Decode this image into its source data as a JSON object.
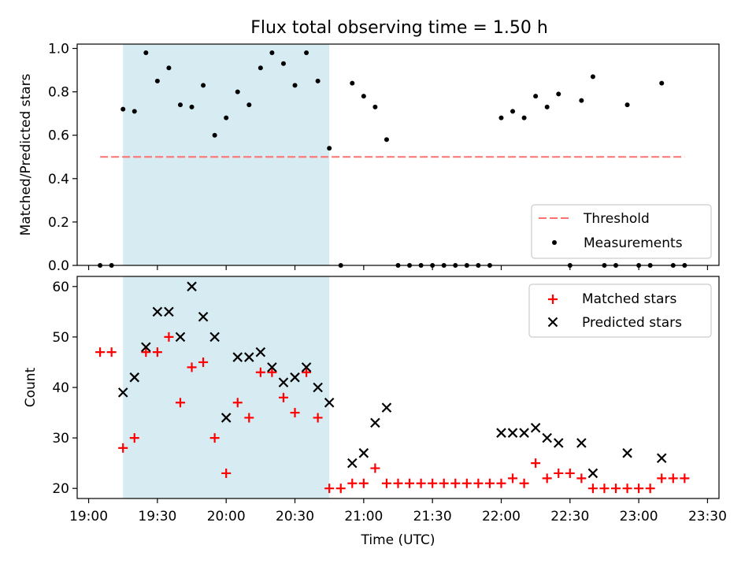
{
  "chart_data": [
    {
      "type": "scatter",
      "title": "Flux total observing time = 1.50 h",
      "ylabel": "Matched/Predicted stars",
      "xlabel": "",
      "xlim": [
        "19:00",
        "23:30"
      ],
      "ylim": [
        0,
        1.0
      ],
      "yticks": [
        "0.0",
        "0.2",
        "0.4",
        "0.6",
        "0.8",
        "1.0"
      ],
      "grid": false,
      "legend_placement": "lower-right",
      "shaded_interval": {
        "start": "19:15",
        "end": "20:45",
        "color": "#add8e6"
      },
      "series": [
        {
          "name": "Threshold",
          "kind": "dashed-line",
          "color": "#ff7070",
          "x": [
            "19:05",
            "23:20"
          ],
          "y": [
            0.5,
            0.5
          ]
        },
        {
          "name": "Measurements",
          "kind": "dot",
          "color": "#000000",
          "points": [
            [
              "19:05",
              0.0
            ],
            [
              "19:10",
              0.0
            ],
            [
              "19:15",
              0.72
            ],
            [
              "19:20",
              0.71
            ],
            [
              "19:25",
              0.98
            ],
            [
              "19:30",
              0.85
            ],
            [
              "19:35",
              0.91
            ],
            [
              "19:40",
              0.74
            ],
            [
              "19:45",
              0.73
            ],
            [
              "19:50",
              0.83
            ],
            [
              "19:55",
              0.6
            ],
            [
              "20:00",
              0.68
            ],
            [
              "20:05",
              0.8
            ],
            [
              "20:10",
              0.74
            ],
            [
              "20:15",
              0.91
            ],
            [
              "20:20",
              0.98
            ],
            [
              "20:25",
              0.93
            ],
            [
              "20:30",
              0.83
            ],
            [
              "20:35",
              0.98
            ],
            [
              "20:40",
              0.85
            ],
            [
              "20:45",
              0.54
            ],
            [
              "20:50",
              0.0
            ],
            [
              "20:55",
              0.84
            ],
            [
              "21:00",
              0.78
            ],
            [
              "21:05",
              0.73
            ],
            [
              "21:10",
              0.58
            ],
            [
              "21:15",
              0.0
            ],
            [
              "21:20",
              0.0
            ],
            [
              "21:25",
              0.0
            ],
            [
              "21:30",
              0.0
            ],
            [
              "21:35",
              0.0
            ],
            [
              "21:40",
              0.0
            ],
            [
              "21:45",
              0.0
            ],
            [
              "21:50",
              0.0
            ],
            [
              "21:55",
              0.0
            ],
            [
              "22:00",
              0.68
            ],
            [
              "22:05",
              0.71
            ],
            [
              "22:10",
              0.68
            ],
            [
              "22:15",
              0.78
            ],
            [
              "22:20",
              0.73
            ],
            [
              "22:25",
              0.79
            ],
            [
              "22:30",
              0.0
            ],
            [
              "22:35",
              0.76
            ],
            [
              "22:40",
              0.87
            ],
            [
              "22:45",
              0.0
            ],
            [
              "22:50",
              0.0
            ],
            [
              "22:55",
              0.74
            ],
            [
              "23:00",
              0.0
            ],
            [
              "23:05",
              0.0
            ],
            [
              "23:10",
              0.84
            ],
            [
              "23:15",
              0.0
            ],
            [
              "23:20",
              0.0
            ]
          ]
        }
      ]
    },
    {
      "type": "scatter",
      "title": "",
      "ylabel": "Count",
      "xlabel": "Time (UTC)",
      "xlim": [
        "19:00",
        "23:30"
      ],
      "ylim": [
        18,
        62
      ],
      "yticks": [
        "20",
        "30",
        "40",
        "50",
        "60"
      ],
      "xticks": [
        "19:00",
        "19:30",
        "20:00",
        "20:30",
        "21:00",
        "21:30",
        "22:00",
        "22:30",
        "23:00",
        "23:30"
      ],
      "grid": false,
      "legend_placement": "upper-right",
      "shaded_interval": {
        "start": "19:15",
        "end": "20:45",
        "color": "#add8e6"
      },
      "series": [
        {
          "name": "Matched stars",
          "kind": "plus",
          "color": "#ff0000",
          "points": [
            [
              "19:05",
              47
            ],
            [
              "19:10",
              47
            ],
            [
              "19:15",
              28
            ],
            [
              "19:20",
              30
            ],
            [
              "19:25",
              47
            ],
            [
              "19:30",
              47
            ],
            [
              "19:35",
              50
            ],
            [
              "19:40",
              37
            ],
            [
              "19:45",
              44
            ],
            [
              "19:50",
              45
            ],
            [
              "19:55",
              30
            ],
            [
              "20:00",
              23
            ],
            [
              "20:05",
              37
            ],
            [
              "20:10",
              34
            ],
            [
              "20:15",
              43
            ],
            [
              "20:20",
              43
            ],
            [
              "20:25",
              38
            ],
            [
              "20:30",
              35
            ],
            [
              "20:35",
              43
            ],
            [
              "20:40",
              34
            ],
            [
              "20:45",
              20
            ],
            [
              "20:50",
              20
            ],
            [
              "20:55",
              21
            ],
            [
              "21:00",
              21
            ],
            [
              "21:05",
              24
            ],
            [
              "21:10",
              21
            ],
            [
              "21:15",
              21
            ],
            [
              "21:20",
              21
            ],
            [
              "21:25",
              21
            ],
            [
              "21:30",
              21
            ],
            [
              "21:35",
              21
            ],
            [
              "21:40",
              21
            ],
            [
              "21:45",
              21
            ],
            [
              "21:50",
              21
            ],
            [
              "21:55",
              21
            ],
            [
              "22:00",
              21
            ],
            [
              "22:05",
              22
            ],
            [
              "22:10",
              21
            ],
            [
              "22:15",
              25
            ],
            [
              "22:20",
              22
            ],
            [
              "22:25",
              23
            ],
            [
              "22:30",
              23
            ],
            [
              "22:35",
              22
            ],
            [
              "22:40",
              20
            ],
            [
              "22:45",
              20
            ],
            [
              "22:50",
              20
            ],
            [
              "22:55",
              20
            ],
            [
              "23:00",
              20
            ],
            [
              "23:05",
              20
            ],
            [
              "23:10",
              22
            ],
            [
              "23:15",
              22
            ],
            [
              "23:20",
              22
            ]
          ]
        },
        {
          "name": "Predicted stars",
          "kind": "x",
          "color": "#000000",
          "points": [
            [
              "19:15",
              39
            ],
            [
              "19:20",
              42
            ],
            [
              "19:25",
              48
            ],
            [
              "19:30",
              55
            ],
            [
              "19:35",
              55
            ],
            [
              "19:40",
              50
            ],
            [
              "19:45",
              60
            ],
            [
              "19:50",
              54
            ],
            [
              "19:55",
              50
            ],
            [
              "20:00",
              34
            ],
            [
              "20:05",
              46
            ],
            [
              "20:10",
              46
            ],
            [
              "20:15",
              47
            ],
            [
              "20:20",
              44
            ],
            [
              "20:25",
              41
            ],
            [
              "20:30",
              42
            ],
            [
              "20:35",
              44
            ],
            [
              "20:40",
              40
            ],
            [
              "20:45",
              37
            ],
            [
              "20:55",
              25
            ],
            [
              "21:00",
              27
            ],
            [
              "21:05",
              33
            ],
            [
              "21:10",
              36
            ],
            [
              "22:00",
              31
            ],
            [
              "22:05",
              31
            ],
            [
              "22:10",
              31
            ],
            [
              "22:15",
              32
            ],
            [
              "22:20",
              30
            ],
            [
              "22:25",
              29
            ],
            [
              "22:35",
              29
            ],
            [
              "22:40",
              23
            ],
            [
              "22:55",
              27
            ],
            [
              "23:10",
              26
            ]
          ]
        }
      ]
    }
  ]
}
